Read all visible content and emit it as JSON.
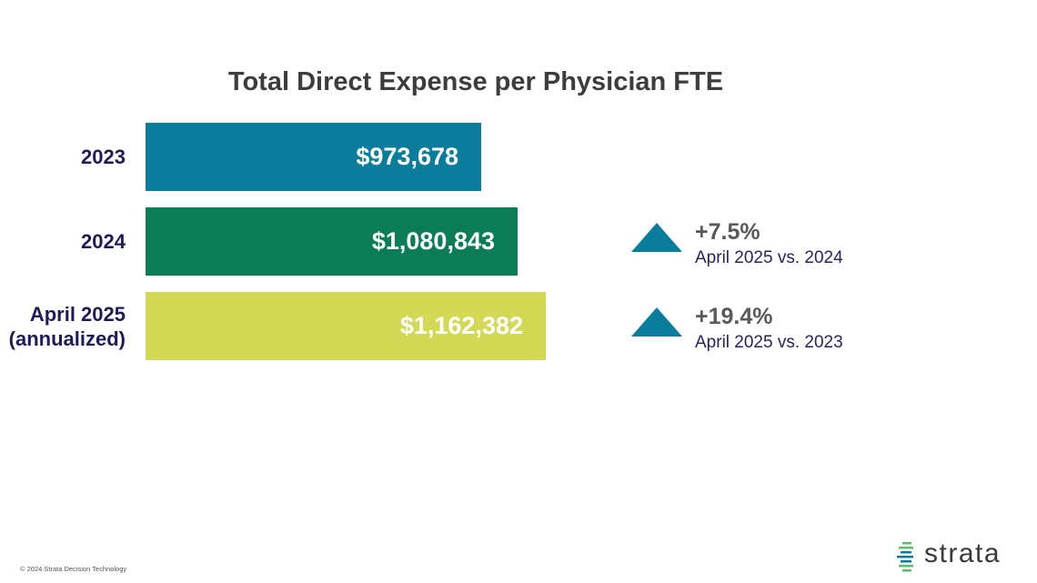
{
  "chart_data": {
    "type": "bar",
    "orientation": "horizontal",
    "title": "Total Direct Expense per Physician FTE",
    "categories": [
      "2023",
      "2024",
      "April 2025\n(annualized)"
    ],
    "values": [
      973678,
      1080843,
      1162382
    ],
    "value_labels": [
      "$973,678",
      "$1,080,843",
      "$1,162,382"
    ],
    "bar_colors": [
      "#0a7c9c",
      "#0b7d56",
      "#d3d954"
    ],
    "xlim": [
      0,
      1162382
    ],
    "xlabel": "",
    "ylabel": "",
    "grid": false,
    "annotations": [
      {
        "direction": "up",
        "change": "+7.5%",
        "comparison": "April 2025 vs. 2024",
        "row": 1
      },
      {
        "direction": "up",
        "change": "+19.4%",
        "comparison": "April 2025 vs. 2023",
        "row": 2
      }
    ]
  },
  "footer": {
    "copyright": "© 2024 Strata Decision Technology"
  },
  "logo": {
    "text": "strata",
    "icon": "strata-stripes-icon",
    "accent": "#5bbf6a"
  }
}
